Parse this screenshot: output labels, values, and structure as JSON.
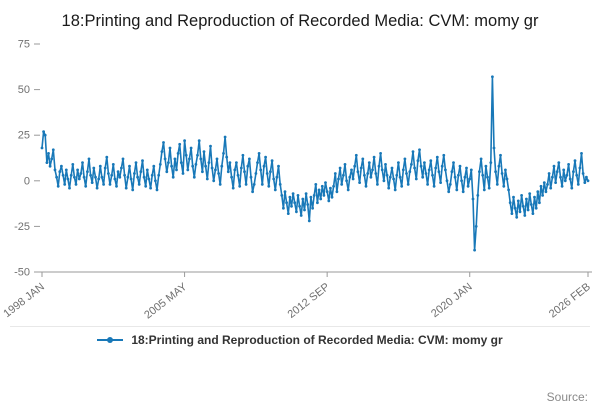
{
  "title": "18:Printing and Reproduction of Recorded Media: CVM: momy gr",
  "legend": {
    "label": "18:Printing and Reproduction of Recorded Media: CVM: momy gr"
  },
  "source": {
    "label": "Source:"
  },
  "chart_data": {
    "type": "line",
    "title": "18:Printing and Reproduction of Recorded Media: CVM: momy gr",
    "xlabel": "",
    "ylabel": "",
    "ylim": [
      -50,
      75
    ],
    "y_ticks": [
      75,
      50,
      25,
      0,
      -25,
      -50
    ],
    "x_tick_labels": [
      "1998 JAN",
      "2005 MAY",
      "2012 SEP",
      "2020 JAN",
      "2026 FEB"
    ],
    "x_tick_indices": [
      0,
      88,
      176,
      264,
      337
    ],
    "x_start": "1998 JAN",
    "x_end": "2026 FEB",
    "frequency": "monthly",
    "grid": false,
    "legend_position": "bottom",
    "color": "#1878b8",
    "values": [
      18,
      27,
      25,
      10,
      15,
      8,
      12,
      17,
      6,
      2,
      -3,
      5,
      8,
      3,
      -2,
      6,
      1,
      -4,
      3,
      9,
      2,
      -2,
      6,
      1,
      4,
      10,
      2,
      -3,
      5,
      12,
      3,
      -1,
      7,
      2,
      -4,
      1,
      8,
      2,
      -2,
      7,
      13,
      4,
      -2,
      3,
      9,
      1,
      -3,
      5,
      2,
      7,
      12,
      3,
      -4,
      2,
      8,
      1,
      -5,
      4,
      10,
      2,
      -2,
      5,
      11,
      2,
      -3,
      6,
      1,
      -4,
      3,
      8,
      0,
      -5,
      3,
      9,
      16,
      21,
      12,
      5,
      10,
      18,
      8,
      2,
      12,
      6,
      15,
      20,
      10,
      4,
      22,
      14,
      6,
      12,
      18,
      8,
      2,
      9,
      14,
      22,
      12,
      5,
      16,
      8,
      1,
      10,
      19,
      7,
      0,
      6,
      12,
      4,
      -2,
      8,
      15,
      24,
      13,
      5,
      10,
      2,
      -4,
      6,
      10,
      3,
      -3,
      7,
      14,
      5,
      -2,
      8,
      12,
      2,
      -6,
      -2,
      4,
      10,
      15,
      6,
      -2,
      8,
      13,
      4,
      -3,
      5,
      11,
      1,
      -5,
      2,
      8,
      -2,
      -8,
      -15,
      -6,
      -12,
      -18,
      -9,
      -14,
      -7,
      -12,
      -17,
      -8,
      -14,
      -19,
      -10,
      -16,
      -7,
      -13,
      -22,
      -9,
      -15,
      -8,
      -2,
      -12,
      -5,
      -10,
      -3,
      -8,
      -1,
      -6,
      -11,
      -4,
      -9,
      -3,
      4,
      -6,
      1,
      7,
      -2,
      3,
      9,
      0,
      -5,
      2,
      6,
      1,
      8,
      14,
      5,
      -1,
      7,
      12,
      3,
      -3,
      4,
      10,
      2,
      6,
      13,
      4,
      -2,
      8,
      15,
      6,
      0,
      9,
      3,
      -4,
      2,
      7,
      1,
      -5,
      3,
      10,
      2,
      -3,
      6,
      12,
      4,
      -2,
      5,
      9,
      16,
      7,
      1,
      11,
      17,
      8,
      2,
      10,
      4,
      -2,
      6,
      11,
      3,
      -3,
      7,
      13,
      5,
      -1,
      8,
      14,
      6,
      0,
      -6,
      -2,
      5,
      10,
      2,
      -5,
      3,
      8,
      0,
      -6,
      2,
      7,
      -3,
      1,
      6,
      -10,
      -38,
      -25,
      -8,
      5,
      12,
      3,
      -5,
      8,
      2,
      -4,
      10,
      57,
      18,
      5,
      -2,
      8,
      14,
      4,
      -3,
      6,
      1,
      -5,
      -12,
      -18,
      -9,
      -15,
      -20,
      -11,
      -17,
      -8,
      -14,
      -19,
      -10,
      -16,
      -7,
      -13,
      -18,
      -9,
      -15,
      -6,
      -12,
      -3,
      -8,
      -1,
      -6,
      -2,
      4,
      -4,
      2,
      8,
      -1,
      5,
      10,
      2,
      -3,
      6,
      0,
      3,
      9,
      1,
      -4,
      5,
      11,
      3,
      -2,
      7,
      15,
      4,
      -1,
      2,
      0
    ]
  }
}
